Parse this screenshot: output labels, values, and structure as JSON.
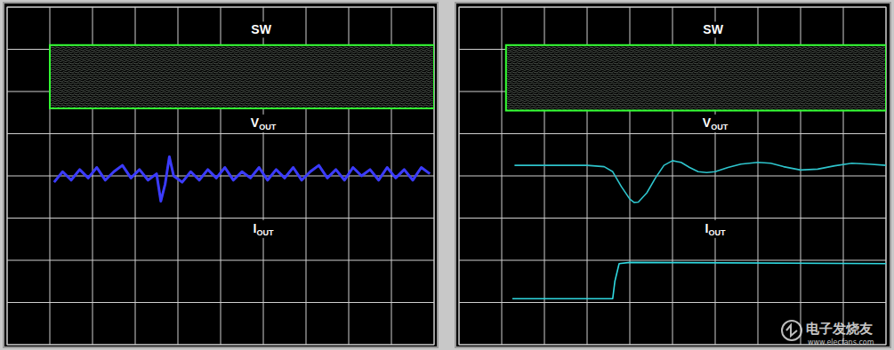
{
  "chart_data": [
    {
      "type": "line",
      "xlim": [
        0,
        10
      ],
      "ylim": [
        0,
        8
      ],
      "xticks": [
        0,
        1,
        2,
        3,
        4,
        5,
        6,
        7,
        8,
        9,
        10
      ],
      "yticks": [
        0,
        1,
        2,
        3,
        4,
        5,
        6,
        7,
        8
      ],
      "grid": true,
      "tick_labels": false,
      "annotations": [
        {
          "text": "SW"
        },
        {
          "text": "V",
          "sub": "OUT"
        },
        {
          "text": "I",
          "sub": "OUT"
        }
      ],
      "series": [
        {
          "name": "SW",
          "type": "band",
          "color": "#33ff33",
          "x": [
            1.0,
            10.0
          ],
          "values": [
            7.1,
            7.1
          ],
          "low": [
            5.6,
            5.6
          ]
        },
        {
          "name": "VOUT",
          "type": "line",
          "color": "#3b3bff",
          "x": [
            1.1,
            1.3,
            1.5,
            1.7,
            1.9,
            2.1,
            2.3,
            2.5,
            2.7,
            2.9,
            3.1,
            3.3,
            3.5,
            3.6,
            3.7,
            3.8,
            3.9,
            4.1,
            4.3,
            4.5,
            4.7,
            4.9,
            5.1,
            5.3,
            5.5,
            5.7,
            5.9,
            6.1,
            6.3,
            6.5,
            6.7,
            6.9,
            7.1,
            7.3,
            7.5,
            7.7,
            7.9,
            8.1,
            8.3,
            8.5,
            8.7,
            8.9,
            9.1,
            9.3,
            9.5,
            9.7,
            9.9
          ],
          "values": [
            3.85,
            4.1,
            3.9,
            4.15,
            3.95,
            4.2,
            3.9,
            4.1,
            4.25,
            3.95,
            4.15,
            3.9,
            4.05,
            3.4,
            3.8,
            4.45,
            4.0,
            3.85,
            4.1,
            3.9,
            4.15,
            3.95,
            4.2,
            3.9,
            4.1,
            3.95,
            4.2,
            3.9,
            4.15,
            3.95,
            4.2,
            3.9,
            4.1,
            4.25,
            3.95,
            4.15,
            3.9,
            4.2,
            4.0,
            4.15,
            3.9,
            4.2,
            3.95,
            4.15,
            3.9,
            4.2,
            4.05
          ]
        }
      ]
    },
    {
      "type": "line",
      "xlim": [
        0,
        10
      ],
      "ylim": [
        0,
        8
      ],
      "xticks": [
        0,
        1,
        2,
        3,
        4,
        5,
        6,
        7,
        8,
        9,
        10
      ],
      "yticks": [
        0,
        1,
        2,
        3,
        4,
        5,
        6,
        7,
        8
      ],
      "grid": true,
      "tick_labels": false,
      "annotations": [
        {
          "text": "SW"
        },
        {
          "text": "V",
          "sub": "OUT"
        },
        {
          "text": "I",
          "sub": "OUT"
        }
      ],
      "series": [
        {
          "name": "SW",
          "type": "band",
          "color": "#33ff33",
          "x": [
            1.1,
            10.0
          ],
          "values": [
            7.1,
            7.1
          ],
          "low": [
            5.55,
            5.55
          ]
        },
        {
          "name": "VOUT",
          "type": "line",
          "color": "#2ec4cc",
          "x": [
            1.3,
            2.0,
            3.0,
            3.4,
            3.6,
            3.8,
            4.0,
            4.1,
            4.2,
            4.4,
            4.6,
            4.8,
            5.0,
            5.2,
            5.4,
            5.6,
            5.8,
            6.0,
            6.3,
            6.6,
            7.0,
            7.3,
            7.6,
            8.0,
            8.4,
            8.8,
            9.2,
            9.6,
            10.0
          ],
          "values": [
            4.25,
            4.25,
            4.25,
            4.22,
            4.1,
            3.75,
            3.45,
            3.37,
            3.38,
            3.6,
            3.95,
            4.25,
            4.36,
            4.32,
            4.2,
            4.1,
            4.08,
            4.1,
            4.2,
            4.28,
            4.32,
            4.3,
            4.22,
            4.14,
            4.16,
            4.24,
            4.3,
            4.28,
            4.25
          ]
        },
        {
          "name": "IOUT",
          "type": "line",
          "color": "#2fd8e0",
          "x": [
            1.25,
            3.6,
            3.65,
            3.75,
            4.0,
            10.0
          ],
          "values": [
            1.09,
            1.09,
            1.5,
            1.92,
            1.95,
            1.92
          ]
        }
      ]
    }
  ],
  "watermark": {
    "text": "电子发烧友",
    "url": "www.elecfans.com"
  }
}
